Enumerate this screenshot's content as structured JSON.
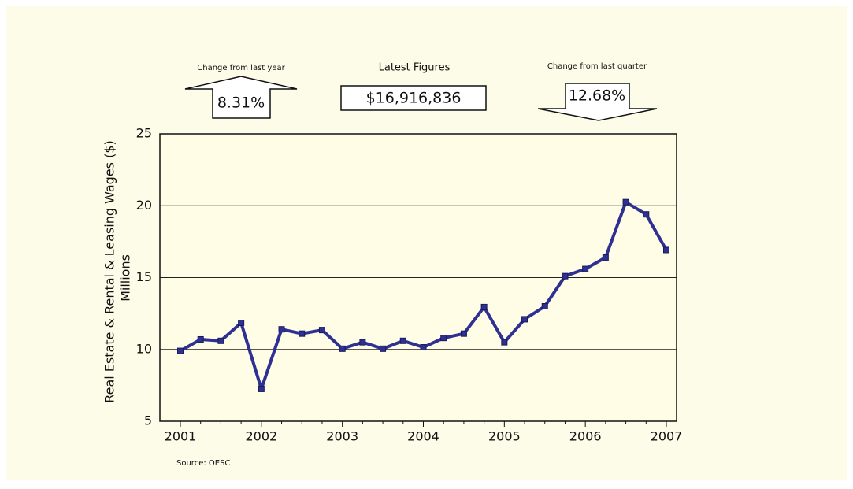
{
  "indicators": {
    "year": {
      "label": "Change from last year",
      "value": "8.31%"
    },
    "latest": {
      "label": "Latest Figures",
      "value": "$16,916,836"
    },
    "quarter": {
      "label": "Change from last quarter",
      "value": "12.68%"
    }
  },
  "chart_data": {
    "type": "line",
    "ylabel": [
      "Real Estate & Rental & Leasing Wages ($)",
      "Millions"
    ],
    "source": "Source: OESC",
    "categories": [
      "2001",
      null,
      null,
      null,
      "2002",
      null,
      null,
      null,
      "2003",
      null,
      null,
      null,
      "2004",
      null,
      null,
      null,
      "2005",
      null,
      null,
      null,
      "2006",
      null,
      null,
      null,
      "2007"
    ],
    "series": [
      {
        "name": "Wages",
        "color": "#2e3192",
        "values": [
          9.9,
          10.7,
          10.6,
          11.85,
          7.25,
          11.4,
          11.1,
          11.35,
          10.05,
          10.5,
          10.05,
          10.6,
          10.15,
          10.8,
          11.1,
          12.95,
          10.5,
          12.1,
          13.0,
          15.1,
          15.6,
          16.4,
          20.25,
          19.4,
          16.92
        ]
      }
    ],
    "ylim": [
      5,
      25
    ],
    "yticks": [
      5,
      10,
      15,
      20,
      25
    ],
    "grid": true
  }
}
